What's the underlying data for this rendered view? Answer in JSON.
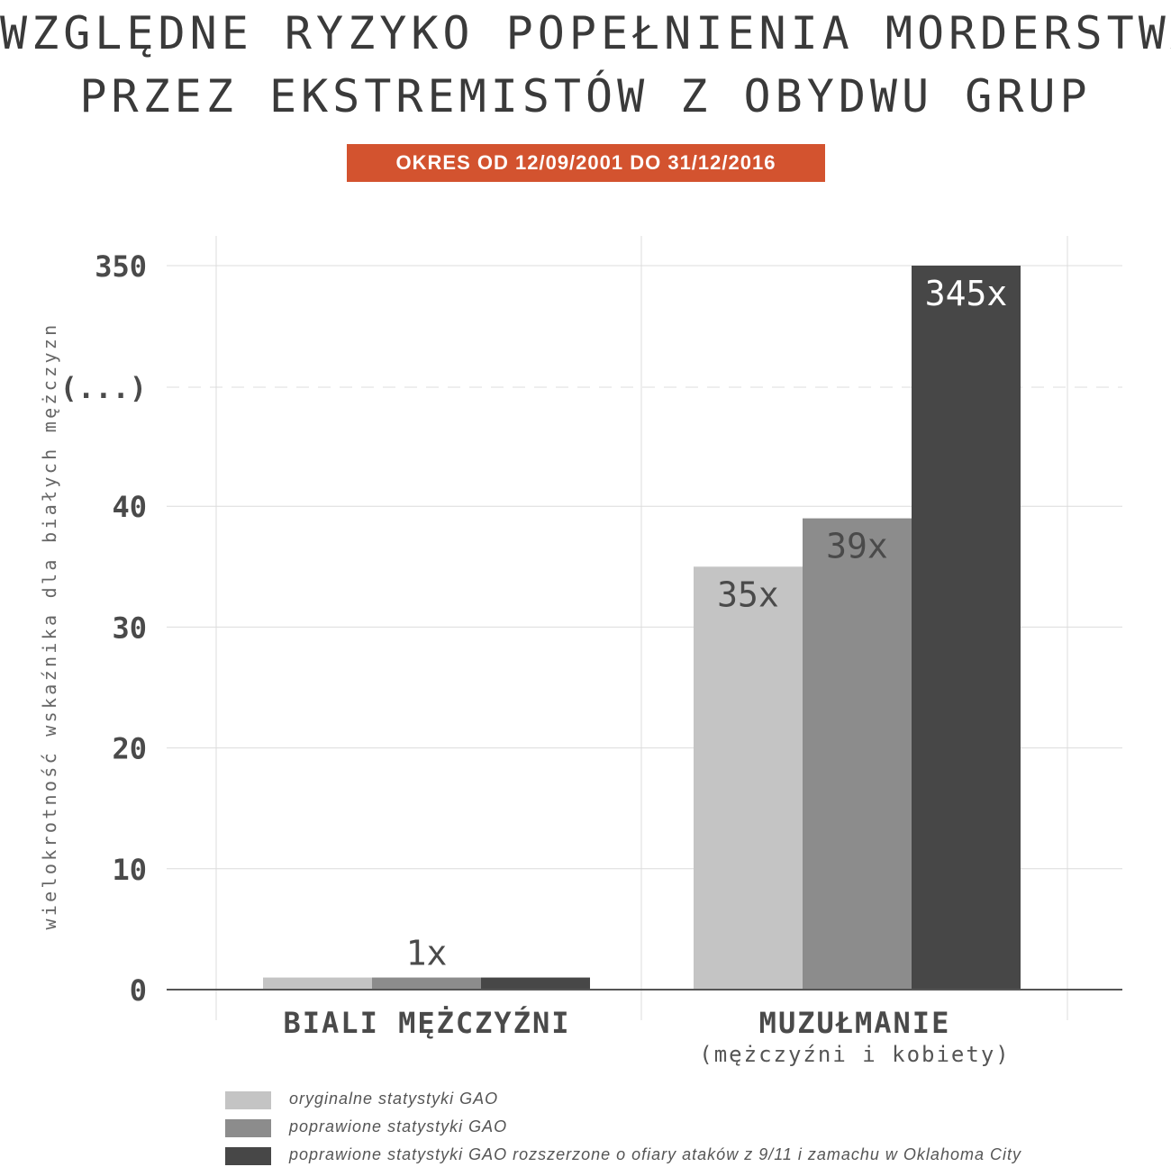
{
  "header": {
    "title_line1": "WZGLĘDNE RYZYKO POPEŁNIENIA MORDERSTWA",
    "title_line2": "PRZEZ EKSTREMISTÓW Z OBYDWU GRUP",
    "period": "OKRES OD 12/09/2001 DO 31/12/2016"
  },
  "chart_data": {
    "type": "bar",
    "ylabel": "wielokrotność wskaźnika dla białych mężczyzn",
    "y_ticks": [
      "0",
      "10",
      "20",
      "30",
      "40",
      "(...)",
      "350"
    ],
    "axis_break": true,
    "ylim": [
      0,
      350
    ],
    "categories": [
      {
        "label": "BIALI MĘŻCZYŹNI",
        "sublabel": ""
      },
      {
        "label": "MUZUŁMANIE",
        "sublabel": "(mężczyźni i kobiety)"
      }
    ],
    "series": [
      {
        "name": "oryginalne statystyki GAO",
        "color": "#c4c4c4",
        "values": [
          1,
          35
        ]
      },
      {
        "name": "poprawione statystyki GAO",
        "color": "#8c8c8c",
        "values": [
          1,
          39
        ]
      },
      {
        "name": "poprawione statystyki GAO rozszerzone o ofiary ataków z 9/11 i zamachu w Oklahoma City",
        "color": "#474747",
        "values": [
          1,
          345
        ]
      }
    ],
    "data_labels": [
      {
        "category": 0,
        "series": 1,
        "text": "1x"
      },
      {
        "category": 1,
        "series": 0,
        "text": "35x"
      },
      {
        "category": 1,
        "series": 1,
        "text": "39x"
      },
      {
        "category": 1,
        "series": 2,
        "text": "345x"
      }
    ],
    "grid": true,
    "legend_position": "bottom"
  }
}
